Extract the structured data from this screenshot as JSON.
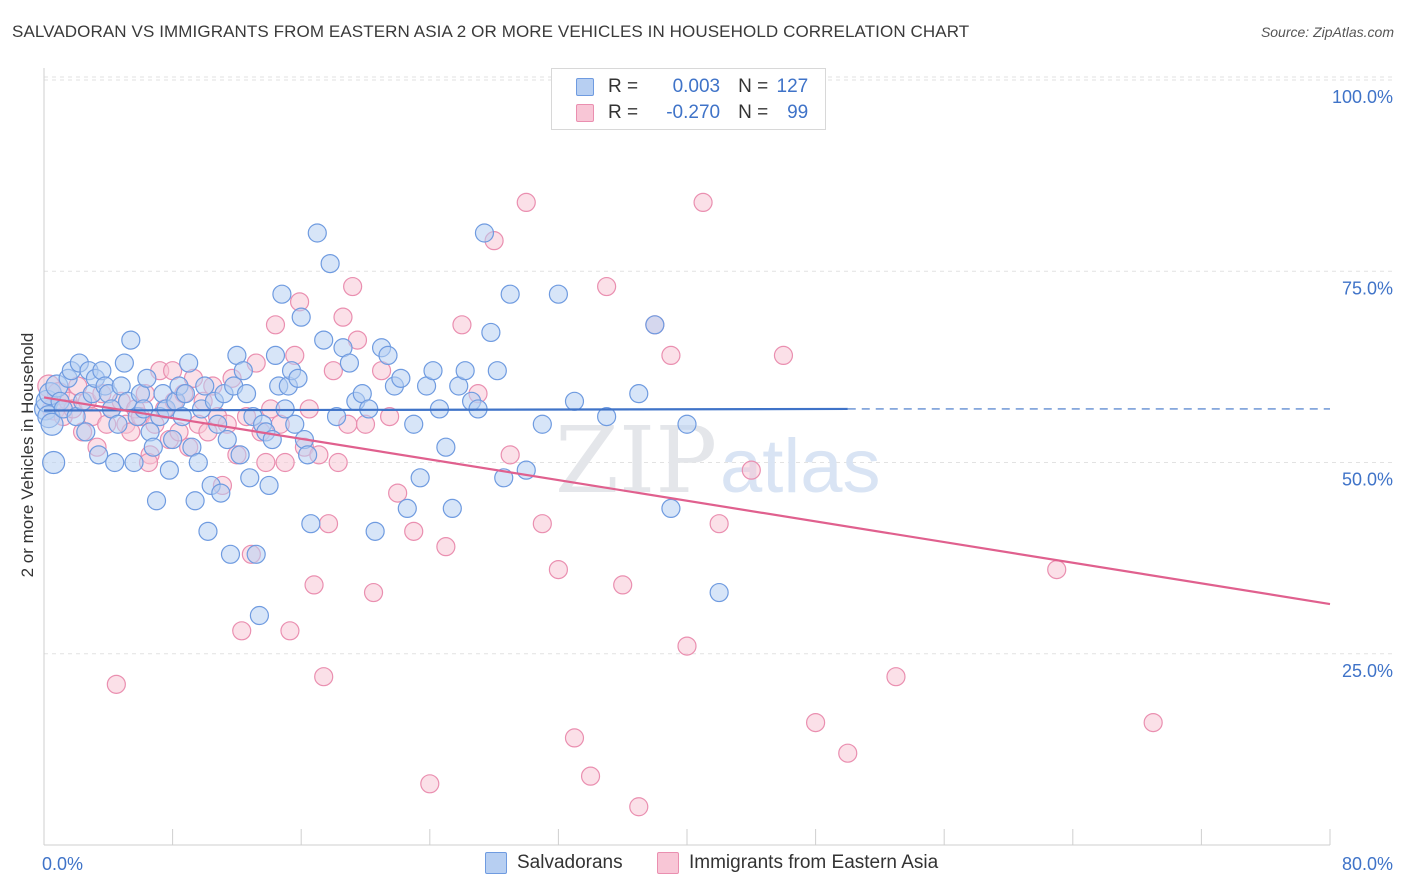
{
  "title": "SALVADORAN VS IMMIGRANTS FROM EASTERN ASIA 2 OR MORE VEHICLES IN HOUSEHOLD CORRELATION CHART",
  "source": "Source: ZipAtlas.com",
  "legend_top": {
    "rows": [
      {
        "r_label": "R =",
        "r_value": "0.003",
        "n_label": "N =",
        "n_value": "127"
      },
      {
        "r_label": "R =",
        "r_value": "-0.270",
        "n_label": "N =",
        "n_value": "99"
      }
    ]
  },
  "colors": {
    "salvadorans": "#6f9be0",
    "salvadorans_fill": "#b7cff2",
    "eastern_asia": "#ea8fb0",
    "eastern_asia_fill": "#f8c6d6",
    "trend_blue": "#3f73c8",
    "trend_pink": "#e0608e"
  },
  "chart_data": {
    "type": "scatter",
    "ylabel": "2 or more Vehicles in Household",
    "xlabel": "",
    "xlim": [
      0,
      80
    ],
    "ylim": [
      0,
      100
    ],
    "x_tick_labels": [
      "0.0%",
      "80.0%"
    ],
    "y_tick_labels": [
      "100.0%",
      "75.0%",
      "50.0%",
      "25.0%"
    ],
    "y_tick_values": [
      100,
      75,
      50,
      25
    ],
    "grid": true,
    "legend_position": "bottom",
    "series": [
      {
        "name": "Salvadorans",
        "trend": {
          "x": [
            0,
            50
          ],
          "y": [
            56.8,
            57.0
          ],
          "dashed_extension_to": 80
        },
        "points": [
          [
            0.1,
            57
          ],
          [
            0.2,
            58
          ],
          [
            0.3,
            56
          ],
          [
            0.4,
            59
          ],
          [
            0.5,
            55
          ],
          [
            0.6,
            50
          ],
          [
            0.8,
            60
          ],
          [
            1.0,
            58
          ],
          [
            1.2,
            57
          ],
          [
            1.5,
            61
          ],
          [
            1.7,
            62
          ],
          [
            2.0,
            56
          ],
          [
            2.2,
            63
          ],
          [
            2.4,
            58
          ],
          [
            2.6,
            54
          ],
          [
            2.8,
            62
          ],
          [
            3.0,
            59
          ],
          [
            3.2,
            61
          ],
          [
            3.4,
            51
          ],
          [
            3.6,
            62
          ],
          [
            3.8,
            60
          ],
          [
            4.0,
            59
          ],
          [
            4.2,
            57
          ],
          [
            4.4,
            50
          ],
          [
            4.6,
            55
          ],
          [
            4.8,
            60
          ],
          [
            5.0,
            63
          ],
          [
            5.2,
            58
          ],
          [
            5.4,
            66
          ],
          [
            5.6,
            50
          ],
          [
            5.8,
            56
          ],
          [
            6.0,
            59
          ],
          [
            6.2,
            57
          ],
          [
            6.4,
            61
          ],
          [
            6.6,
            54
          ],
          [
            6.8,
            52
          ],
          [
            7.0,
            45
          ],
          [
            7.2,
            56
          ],
          [
            7.4,
            59
          ],
          [
            7.6,
            57
          ],
          [
            7.8,
            49
          ],
          [
            8.0,
            53
          ],
          [
            8.2,
            58
          ],
          [
            8.4,
            60
          ],
          [
            8.6,
            56
          ],
          [
            8.8,
            59
          ],
          [
            9.0,
            63
          ],
          [
            9.2,
            52
          ],
          [
            9.4,
            45
          ],
          [
            9.6,
            50
          ],
          [
            9.8,
            57
          ],
          [
            10.0,
            60
          ],
          [
            10.2,
            41
          ],
          [
            10.4,
            47
          ],
          [
            10.6,
            58
          ],
          [
            10.8,
            55
          ],
          [
            11.0,
            46
          ],
          [
            11.2,
            59
          ],
          [
            11.4,
            53
          ],
          [
            11.6,
            38
          ],
          [
            11.8,
            60
          ],
          [
            12.0,
            64
          ],
          [
            12.2,
            51
          ],
          [
            12.4,
            62
          ],
          [
            12.6,
            59
          ],
          [
            12.8,
            48
          ],
          [
            13.0,
            56
          ],
          [
            13.2,
            38
          ],
          [
            13.4,
            30
          ],
          [
            13.6,
            55
          ],
          [
            13.8,
            54
          ],
          [
            14.0,
            47
          ],
          [
            14.2,
            53
          ],
          [
            14.4,
            64
          ],
          [
            14.6,
            60
          ],
          [
            14.8,
            72
          ],
          [
            15.0,
            57
          ],
          [
            15.2,
            60
          ],
          [
            15.4,
            62
          ],
          [
            15.6,
            55
          ],
          [
            15.8,
            61
          ],
          [
            16.0,
            69
          ],
          [
            16.2,
            53
          ],
          [
            16.4,
            51
          ],
          [
            16.6,
            42
          ],
          [
            17.0,
            80
          ],
          [
            17.4,
            66
          ],
          [
            17.8,
            76
          ],
          [
            18.2,
            56
          ],
          [
            18.6,
            65
          ],
          [
            19.0,
            63
          ],
          [
            19.4,
            58
          ],
          [
            19.8,
            59
          ],
          [
            20.2,
            57
          ],
          [
            20.6,
            41
          ],
          [
            21.0,
            65
          ],
          [
            21.4,
            64
          ],
          [
            21.8,
            60
          ],
          [
            22.2,
            61
          ],
          [
            22.6,
            44
          ],
          [
            23.0,
            55
          ],
          [
            23.4,
            48
          ],
          [
            23.8,
            60
          ],
          [
            24.2,
            62
          ],
          [
            24.6,
            57
          ],
          [
            25.0,
            52
          ],
          [
            25.4,
            44
          ],
          [
            25.8,
            60
          ],
          [
            26.2,
            62
          ],
          [
            26.6,
            58
          ],
          [
            27.0,
            57
          ],
          [
            27.4,
            80
          ],
          [
            27.8,
            67
          ],
          [
            28.2,
            62
          ],
          [
            28.6,
            48
          ],
          [
            29.0,
            72
          ],
          [
            30.0,
            49
          ],
          [
            31.0,
            55
          ],
          [
            32.0,
            72
          ],
          [
            33.0,
            58
          ],
          [
            35.0,
            56
          ],
          [
            37.0,
            59
          ],
          [
            38.0,
            68
          ],
          [
            39.0,
            44
          ],
          [
            40.0,
            55
          ],
          [
            42.0,
            33
          ]
        ]
      },
      {
        "name": "Immigrants from Eastern Asia",
        "trend": {
          "x": [
            0,
            80
          ],
          "y": [
            58.5,
            31.5
          ]
        },
        "points": [
          [
            0.3,
            60
          ],
          [
            0.6,
            57
          ],
          [
            0.9,
            59
          ],
          [
            1.2,
            56
          ],
          [
            1.5,
            58
          ],
          [
            1.8,
            57
          ],
          [
            2.1,
            60
          ],
          [
            2.4,
            54
          ],
          [
            2.7,
            58
          ],
          [
            3.0,
            56
          ],
          [
            3.3,
            52
          ],
          [
            3.6,
            59
          ],
          [
            3.9,
            55
          ],
          [
            4.2,
            57
          ],
          [
            4.5,
            21
          ],
          [
            4.8,
            58
          ],
          [
            5.1,
            55
          ],
          [
            5.4,
            54
          ],
          [
            5.7,
            57
          ],
          [
            6.0,
            56
          ],
          [
            6.3,
            59
          ],
          [
            6.6,
            51
          ],
          [
            6.9,
            55
          ],
          [
            7.2,
            62
          ],
          [
            7.5,
            57
          ],
          [
            7.8,
            53
          ],
          [
            8.1,
            58
          ],
          [
            8.4,
            54
          ],
          [
            8.7,
            59
          ],
          [
            9.0,
            52
          ],
          [
            9.3,
            61
          ],
          [
            9.6,
            55
          ],
          [
            9.9,
            58
          ],
          [
            10.2,
            54
          ],
          [
            10.5,
            60
          ],
          [
            10.8,
            56
          ],
          [
            11.1,
            47
          ],
          [
            11.4,
            55
          ],
          [
            11.7,
            61
          ],
          [
            12.0,
            51
          ],
          [
            12.3,
            28
          ],
          [
            12.6,
            56
          ],
          [
            12.9,
            38
          ],
          [
            13.2,
            63
          ],
          [
            13.5,
            54
          ],
          [
            13.8,
            50
          ],
          [
            14.1,
            57
          ],
          [
            14.4,
            68
          ],
          [
            14.7,
            55
          ],
          [
            15.0,
            50
          ],
          [
            15.3,
            28
          ],
          [
            15.6,
            64
          ],
          [
            15.9,
            71
          ],
          [
            16.2,
            52
          ],
          [
            16.5,
            57
          ],
          [
            16.8,
            34
          ],
          [
            17.1,
            51
          ],
          [
            17.4,
            22
          ],
          [
            17.7,
            42
          ],
          [
            18.0,
            62
          ],
          [
            18.3,
            50
          ],
          [
            18.6,
            69
          ],
          [
            18.9,
            55
          ],
          [
            19.2,
            73
          ],
          [
            19.5,
            66
          ],
          [
            20.0,
            55
          ],
          [
            20.5,
            33
          ],
          [
            21.0,
            62
          ],
          [
            21.5,
            56
          ],
          [
            22.0,
            46
          ],
          [
            23.0,
            41
          ],
          [
            24.0,
            8
          ],
          [
            25.0,
            39
          ],
          [
            26.0,
            68
          ],
          [
            27.0,
            59
          ],
          [
            28.0,
            79
          ],
          [
            29.0,
            51
          ],
          [
            30.0,
            84
          ],
          [
            31.0,
            42
          ],
          [
            32.0,
            36
          ],
          [
            33.0,
            14
          ],
          [
            34.0,
            9
          ],
          [
            35.0,
            73
          ],
          [
            36.0,
            34
          ],
          [
            37.0,
            5
          ],
          [
            38.0,
            68
          ],
          [
            39.0,
            64
          ],
          [
            40.0,
            26
          ],
          [
            41.0,
            84
          ],
          [
            42.0,
            42
          ],
          [
            44.0,
            49
          ],
          [
            46.0,
            64
          ],
          [
            48.0,
            16
          ],
          [
            50.0,
            12
          ],
          [
            53.0,
            22
          ],
          [
            63.0,
            36
          ],
          [
            69.0,
            16
          ],
          [
            8.0,
            62
          ],
          [
            6.5,
            50
          ]
        ]
      }
    ]
  },
  "bottom_legend": [
    {
      "label": "Salvadorans"
    },
    {
      "label": "Immigrants from Eastern Asia"
    }
  ]
}
